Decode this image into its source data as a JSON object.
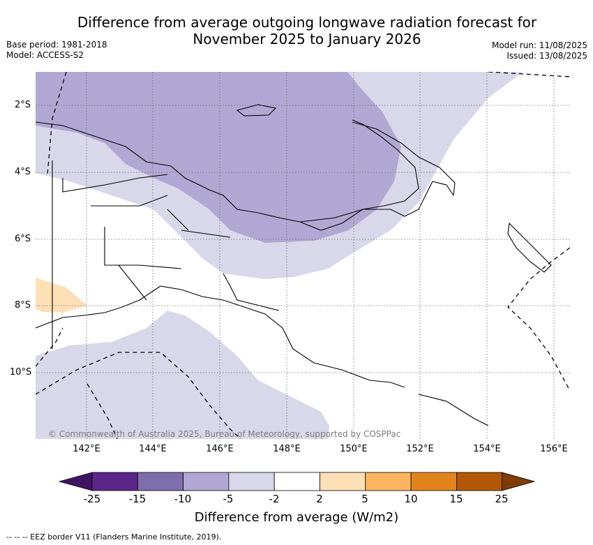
{
  "title": {
    "line1": "Difference from average outgoing longwave radiation forecast for",
    "line2": "November 2025 to January 2026"
  },
  "meta_left": {
    "base_period": "Base period: 1981-2018",
    "model": "Model: ACCESS-S2"
  },
  "meta_right": {
    "model_run": "Model run: 11/08/2025",
    "issued": "Issued: 13/08/2025"
  },
  "lat_labels": [
    "2°S",
    "4°S",
    "6°S",
    "8°S",
    "10°S"
  ],
  "lon_labels": [
    "142°E",
    "144°E",
    "146°E",
    "148°E",
    "150°E",
    "152°E",
    "154°E",
    "156°E"
  ],
  "copyright": "© Commonwealth of Australia 2025, Bureau of Meteorology, supported by COSPPac",
  "colorbar": {
    "ticks": [
      "-25",
      "-15",
      "-10",
      "-5",
      "-2",
      "2",
      "5",
      "10",
      "15",
      "25"
    ],
    "colors": [
      "#3f1462",
      "#5b2689",
      "#7f6eac",
      "#b0a8d2",
      "#d8d8ea",
      "#ffffff",
      "#fde0b6",
      "#fbb561",
      "#e2841c",
      "#b35807",
      "#7f3b08"
    ],
    "label": "Difference from average (W/m2)"
  },
  "footnote": "-- -- -- EEZ border V11 (Flanders Marine Institute, 2019).",
  "map_colors": {
    "ocean_bg": "#ffffff",
    "light_purple": "#d8d8ea",
    "mid_purple": "#b0a8d2",
    "orange": "#fde0b6"
  }
}
